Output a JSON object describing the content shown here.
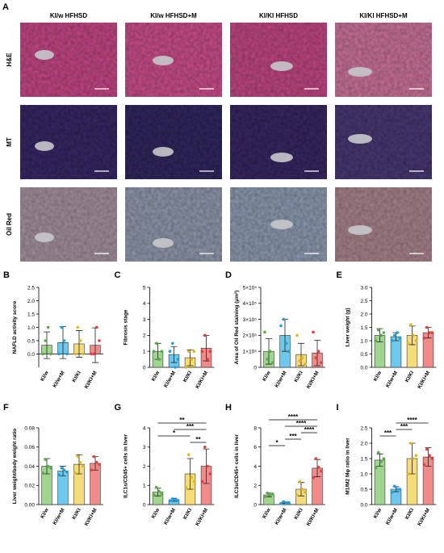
{
  "panel_a": {
    "letter": "A",
    "columns": [
      "KI/w HFHSD",
      "KI/w HFHSD+M",
      "KI/KI HFHSD",
      "KI/KI HFHSD+M"
    ],
    "rows": [
      "H&E",
      "MT",
      "Oil Red"
    ]
  },
  "chart_data": [
    {
      "type": "bar",
      "letter": "B",
      "ylabel": "NAFLD activity score",
      "categories": [
        "KI/w",
        "KI/w+M",
        "KI/KI",
        "KI/KI+M"
      ],
      "colors": [
        "#9fd58e",
        "#6cc8ee",
        "#f6dc78",
        "#f28a8a"
      ],
      "point_colors": [
        "#5aaa4a",
        "#1fa0d8",
        "#e0b820",
        "#e04040"
      ],
      "values": [
        0.33,
        0.43,
        0.38,
        0.33
      ],
      "errors": [
        0.5,
        0.6,
        0.5,
        0.65
      ],
      "points": [
        [
          0,
          0.5,
          1.0,
          0
        ],
        [
          0,
          1.0,
          0.5,
          0
        ],
        [
          0,
          1.0,
          0.5,
          0
        ],
        [
          0,
          0,
          1.0,
          0.5
        ]
      ],
      "ylim": [
        -0.5,
        2.5
      ],
      "yticks": [
        {
          "value": 0,
          "label": "0.0"
        },
        {
          "value": 0.5,
          "label": "0.5"
        },
        {
          "value": 1,
          "label": "1.0"
        },
        {
          "value": 1.5,
          "label": "1.5"
        },
        {
          "value": 2,
          "label": "2.0"
        },
        {
          "value": 2.5,
          "label": "2.5"
        }
      ],
      "significance": []
    },
    {
      "type": "bar",
      "letter": "C",
      "ylabel": "Fibrosis stage",
      "categories": [
        "KI/w",
        "KI/w+M",
        "KI/KI",
        "KI/KI+M"
      ],
      "colors": [
        "#9fd58e",
        "#6cc8ee",
        "#f6dc78",
        "#f28a8a"
      ],
      "point_colors": [
        "#5aaa4a",
        "#1fa0d8",
        "#e0b820",
        "#e04040"
      ],
      "values": [
        1.0,
        0.8,
        0.6,
        1.2
      ],
      "errors": [
        0.5,
        0.5,
        0.5,
        0.8
      ],
      "points": [
        [
          1,
          1.5,
          0.5,
          1
        ],
        [
          1,
          1.5,
          0,
          0.5
        ],
        [
          0,
          1,
          0.5,
          1
        ],
        [
          1,
          2,
          0.5,
          1
        ]
      ],
      "ylim": [
        0,
        5
      ],
      "yticks": [
        0,
        1,
        2,
        3,
        4,
        5
      ],
      "significance": []
    },
    {
      "type": "bar",
      "letter": "D",
      "ylabel": "Area of Oil Red staining (μm²)",
      "categories": [
        "KI/w",
        "KI/w+M",
        "KI/KI",
        "KI/KI+M"
      ],
      "colors": [
        "#9fd58e",
        "#6cc8ee",
        "#f6dc78",
        "#f28a8a"
      ],
      "point_colors": [
        "#5aaa4a",
        "#1fa0d8",
        "#e0b820",
        "#e04040"
      ],
      "values": [
        100000,
        200000,
        80000,
        90000
      ],
      "errors": [
        80000,
        100000,
        70000,
        80000
      ],
      "points": [
        [
          220000,
          50000,
          100000,
          30000
        ],
        [
          260000,
          300000,
          150000,
          100000
        ],
        [
          200000,
          40000,
          60000,
          20000
        ],
        [
          220000,
          60000,
          100000,
          30000
        ]
      ],
      "ylim": [
        0,
        500000
      ],
      "yticks": [
        0,
        {
          "value": 100000,
          "label": "1×10⁵"
        },
        {
          "value": 200000,
          "label": "2×10⁵"
        },
        {
          "value": 300000,
          "label": "3×10⁵"
        },
        {
          "value": 400000,
          "label": "4×10⁵"
        },
        {
          "value": 500000,
          "label": "5×10⁵"
        }
      ],
      "significance": []
    },
    {
      "type": "bar",
      "letter": "E",
      "ylabel": "Liver weight (g)",
      "categories": [
        "KI/w",
        "KI/w+M",
        "KI/KI",
        "KI/KI+M"
      ],
      "colors": [
        "#9fd58e",
        "#6cc8ee",
        "#f6dc78",
        "#f28a8a"
      ],
      "point_colors": [
        "#5aaa4a",
        "#1fa0d8",
        "#e0b820",
        "#e04040"
      ],
      "values": [
        1.2,
        1.15,
        1.2,
        1.3
      ],
      "errors": [
        0.25,
        0.15,
        0.35,
        0.2
      ],
      "points": [
        [
          1.0,
          1.4,
          1.2,
          1.3
        ],
        [
          1.0,
          1.2,
          1.3,
          1.1
        ],
        [
          0.9,
          1.6,
          1.2,
          1.0
        ],
        [
          1.1,
          1.5,
          1.3,
          1.3
        ]
      ],
      "ylim": [
        0,
        3
      ],
      "yticks": [
        {
          "value": 0,
          "label": "0.0"
        },
        {
          "value": 0.5,
          "label": "0.5"
        },
        {
          "value": 1,
          "label": "1.0"
        },
        {
          "value": 1.5,
          "label": "1.5"
        },
        {
          "value": 2,
          "label": "2.0"
        },
        {
          "value": 2.5,
          "label": "2.5"
        },
        {
          "value": 3,
          "label": "3.0"
        }
      ],
      "significance": []
    },
    {
      "type": "bar",
      "letter": "F",
      "ylabel": "Liver weight/body weight ratio",
      "categories": [
        "KI/w",
        "KI/w+M",
        "KI/KI",
        "KI/KI+M"
      ],
      "colors": [
        "#9fd58e",
        "#6cc8ee",
        "#f6dc78",
        "#f28a8a"
      ],
      "point_colors": [
        "#5aaa4a",
        "#1fa0d8",
        "#e0b820",
        "#e04040"
      ],
      "values": [
        0.04,
        0.035,
        0.042,
        0.043
      ],
      "errors": [
        0.008,
        0.005,
        0.01,
        0.007
      ],
      "points": [
        [
          0.033,
          0.047,
          0.04,
          0.038
        ],
        [
          0.031,
          0.038,
          0.036,
          0.034
        ],
        [
          0.033,
          0.05,
          0.044,
          0.04
        ],
        [
          0.036,
          0.05,
          0.044,
          0.042
        ]
      ],
      "ylim": [
        0,
        0.08
      ],
      "yticks": [
        {
          "value": 0,
          "label": "0.00"
        },
        {
          "value": 0.02,
          "label": "0.02"
        },
        {
          "value": 0.04,
          "label": "0.04"
        },
        {
          "value": 0.06,
          "label": "0.06"
        },
        {
          "value": 0.08,
          "label": "0.08"
        }
      ],
      "significance": []
    },
    {
      "type": "bar",
      "letter": "G",
      "ylabel": "ILC1s/CD45+ cells in liver",
      "categories": [
        "KI/w",
        "KI/w+M",
        "KI/KI",
        "KI/KI+M"
      ],
      "colors": [
        "#9fd58e",
        "#6cc8ee",
        "#f6dc78",
        "#f28a8a"
      ],
      "point_colors": [
        "#5aaa4a",
        "#1fa0d8",
        "#e0b820",
        "#e04040"
      ],
      "values": [
        0.65,
        0.25,
        1.6,
        2.0
      ],
      "errors": [
        0.2,
        0.08,
        0.8,
        0.9
      ],
      "points": [
        [
          0.5,
          0.9,
          0.7,
          0.55
        ],
        [
          0.2,
          0.3,
          0.25,
          0.22
        ],
        [
          0.9,
          2.6,
          1.4,
          1.2
        ],
        [
          1.2,
          3.0,
          2.0,
          1.6
        ]
      ],
      "ylim": [
        0,
        4
      ],
      "yticks": [
        0,
        1,
        2,
        3,
        4
      ],
      "significance": [
        {
          "pair": [
            2,
            3
          ],
          "label": "**"
        },
        {
          "pair": [
            0,
            2
          ],
          "label": "*"
        },
        {
          "pair": [
            1,
            3
          ],
          "label": "***"
        },
        {
          "pair": [
            0,
            3
          ],
          "label": "**"
        }
      ]
    },
    {
      "type": "bar",
      "letter": "H",
      "ylabel": "ILC3s/CD45+ cells in liver",
      "categories": [
        "KI/w",
        "KI/w+M",
        "KI/KI",
        "KI/KI+M"
      ],
      "colors": [
        "#9fd58e",
        "#6cc8ee",
        "#f6dc78",
        "#f28a8a"
      ],
      "point_colors": [
        "#5aaa4a",
        "#1fa0d8",
        "#e0b820",
        "#e04040"
      ],
      "values": [
        1.0,
        0.2,
        1.6,
        3.8
      ],
      "errors": [
        0.2,
        0.08,
        0.7,
        0.9
      ],
      "points": [
        [
          0.8,
          1.2,
          1.0,
          1.1
        ],
        [
          0.1,
          0.3,
          0.2,
          0.2
        ],
        [
          1.0,
          2.4,
          1.6,
          1.3
        ],
        [
          2.8,
          4.8,
          3.9,
          3.5
        ]
      ],
      "ylim": [
        0,
        8
      ],
      "yticks": [
        0,
        2,
        4,
        6,
        8
      ],
      "significance": [
        {
          "pair": [
            0,
            1
          ],
          "label": "*"
        },
        {
          "pair": [
            1,
            2
          ],
          "label": "***"
        },
        {
          "pair": [
            2,
            3
          ],
          "label": "****"
        },
        {
          "pair": [
            1,
            3
          ],
          "label": "****"
        },
        {
          "pair": [
            0,
            3
          ],
          "label": "****"
        }
      ]
    },
    {
      "type": "bar",
      "letter": "I",
      "ylabel": "M1/M2 Mφ ratio in liver",
      "categories": [
        "KI/w",
        "KI/w+M",
        "KI/KI",
        "KI/KI+M"
      ],
      "colors": [
        "#9fd58e",
        "#6cc8ee",
        "#f6dc78",
        "#f28a8a"
      ],
      "point_colors": [
        "#5aaa4a",
        "#1fa0d8",
        "#e0b820",
        "#e04040"
      ],
      "values": [
        1.45,
        0.5,
        1.5,
        1.55
      ],
      "errors": [
        0.2,
        0.08,
        0.5,
        0.3
      ],
      "points": [
        [
          1.2,
          1.7,
          1.4,
          1.5
        ],
        [
          0.4,
          0.6,
          0.5,
          0.5
        ],
        [
          1.0,
          2.0,
          1.5,
          1.6
        ],
        [
          1.3,
          1.8,
          1.6,
          1.5
        ]
      ],
      "ylim": [
        0,
        2.5
      ],
      "yticks": [
        {
          "value": 0,
          "label": "0.0"
        },
        {
          "value": 0.5,
          "label": "0.5"
        },
        {
          "value": 1,
          "label": "1.0"
        },
        {
          "value": 1.5,
          "label": "1.5"
        },
        {
          "value": 2,
          "label": "2.0"
        },
        {
          "value": 2.5,
          "label": "2.5"
        }
      ],
      "significance": [
        {
          "pair": [
            0,
            1
          ],
          "label": "***"
        },
        {
          "pair": [
            1,
            2
          ],
          "label": "***"
        },
        {
          "pair": [
            1,
            3
          ],
          "label": "****"
        }
      ]
    }
  ]
}
